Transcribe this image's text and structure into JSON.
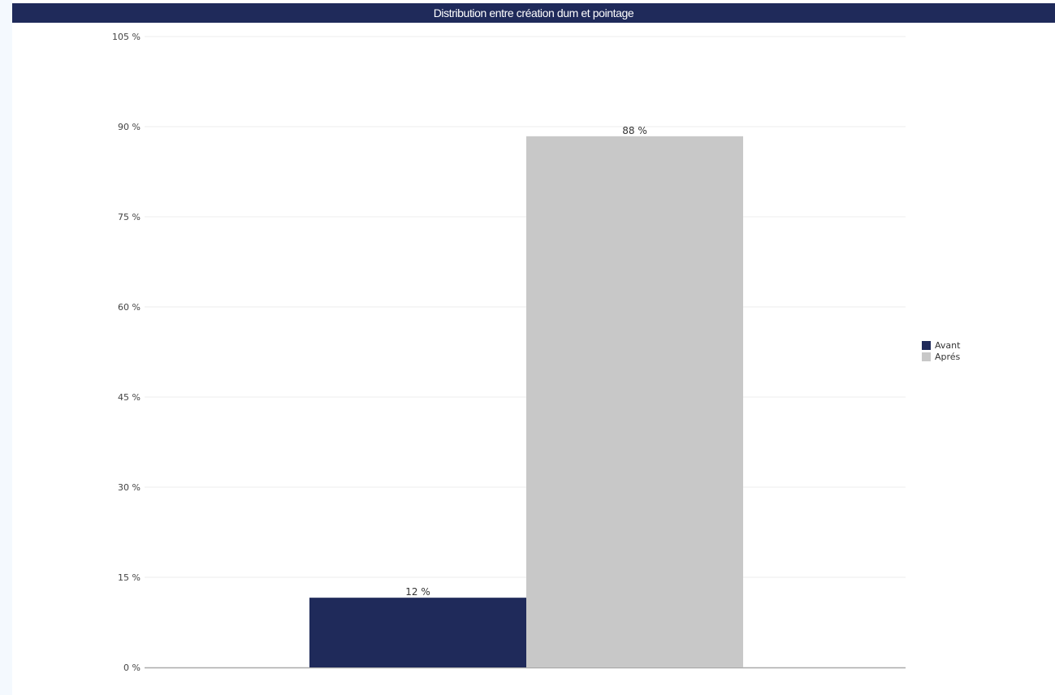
{
  "title": "Distribution entre création dum et pointage",
  "chart_data": {
    "type": "bar",
    "title": "Distribution entre création dum et pointage",
    "xlabel": "",
    "ylabel": "",
    "ylim": [
      0,
      105
    ],
    "yticks": [
      "0 %",
      "15 %",
      "30 %",
      "45 %",
      "60 %",
      "75 %",
      "90 %",
      "105 %"
    ],
    "ytick_values": [
      0,
      15,
      30,
      45,
      60,
      75,
      90,
      105
    ],
    "grid": true,
    "legend_position": "right",
    "series": [
      {
        "name": "Avant",
        "value": 11.6,
        "label": "12 %",
        "color": "#1f2a5a"
      },
      {
        "name": "Aprés",
        "value": 88.4,
        "label": "88 %",
        "color": "#c8c8c8"
      }
    ]
  }
}
